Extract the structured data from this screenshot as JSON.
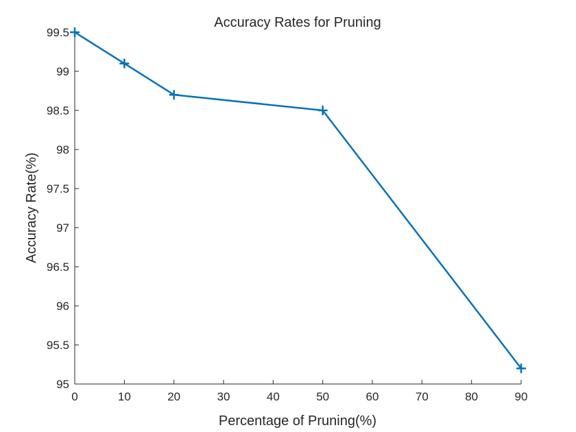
{
  "chart_data": {
    "type": "line",
    "title": "Accuracy Rates for Pruning",
    "xlabel": "Percentage of Pruning(%)",
    "ylabel": "Accuracy Rate(%)",
    "xlim": [
      0,
      90
    ],
    "ylim": [
      95,
      99.5
    ],
    "x_ticks": [
      0,
      10,
      20,
      30,
      40,
      50,
      60,
      70,
      80,
      90
    ],
    "y_ticks": [
      95,
      95.5,
      96,
      96.5,
      97,
      97.5,
      98,
      98.5,
      99,
      99.5
    ],
    "x_tick_labels": [
      "0",
      "10",
      "20",
      "30",
      "40",
      "50",
      "60",
      "70",
      "80",
      "90"
    ],
    "y_tick_labels": [
      "95",
      "95.5",
      "96",
      "96.5",
      "97",
      "97.5",
      "98",
      "98.5",
      "99",
      "99.5"
    ],
    "grid": false,
    "legend": "none",
    "x": [
      0,
      10,
      20,
      50,
      90
    ],
    "series": [
      {
        "values": [
          99.5,
          99.1,
          98.7,
          98.5,
          95.2
        ],
        "color": "#0072bd",
        "marker": "plus"
      }
    ]
  }
}
